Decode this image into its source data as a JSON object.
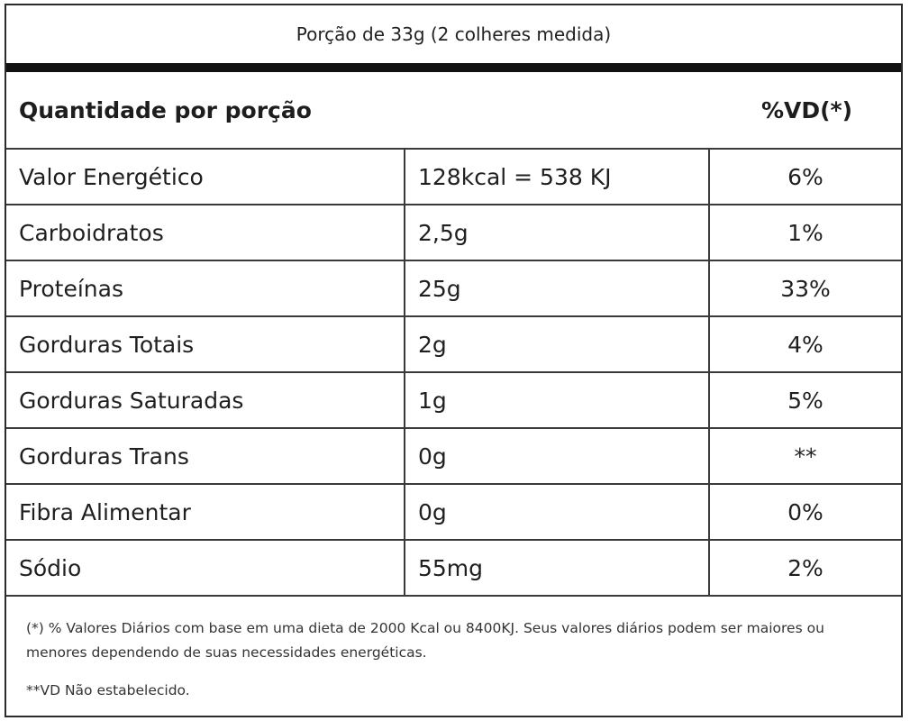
{
  "portion": "Porção de 33g (2 colheres medida)",
  "header": {
    "quantity_label": "Quantidade por porção",
    "vd_label": "%VD(*)"
  },
  "rows": [
    {
      "name": "Valor Energético",
      "amount": "128kcal = 538 KJ",
      "vd": "6%"
    },
    {
      "name": "Carboidratos",
      "amount": "2,5g",
      "vd": "1%"
    },
    {
      "name": "Proteínas",
      "amount": "25g",
      "vd": "33%"
    },
    {
      "name": "Gorduras Totais",
      "amount": "2g",
      "vd": "4%"
    },
    {
      "name": "Gorduras Saturadas",
      "amount": "1g",
      "vd": "5%"
    },
    {
      "name": "Gorduras Trans",
      "amount": "0g",
      "vd": "**"
    },
    {
      "name": "Fibra Alimentar",
      "amount": "0g",
      "vd": "0%"
    },
    {
      "name": "Sódio",
      "amount": "55mg",
      "vd": "2%"
    }
  ],
  "footnotes": {
    "vd_note": "(*) % Valores Diários com base em uma dieta de 2000 Kcal ou 8400KJ. Seus valores diários podem ser maiores ou menores dependendo de suas necessidades energéticas.",
    "na_note": "**VD Não estabelecido."
  }
}
